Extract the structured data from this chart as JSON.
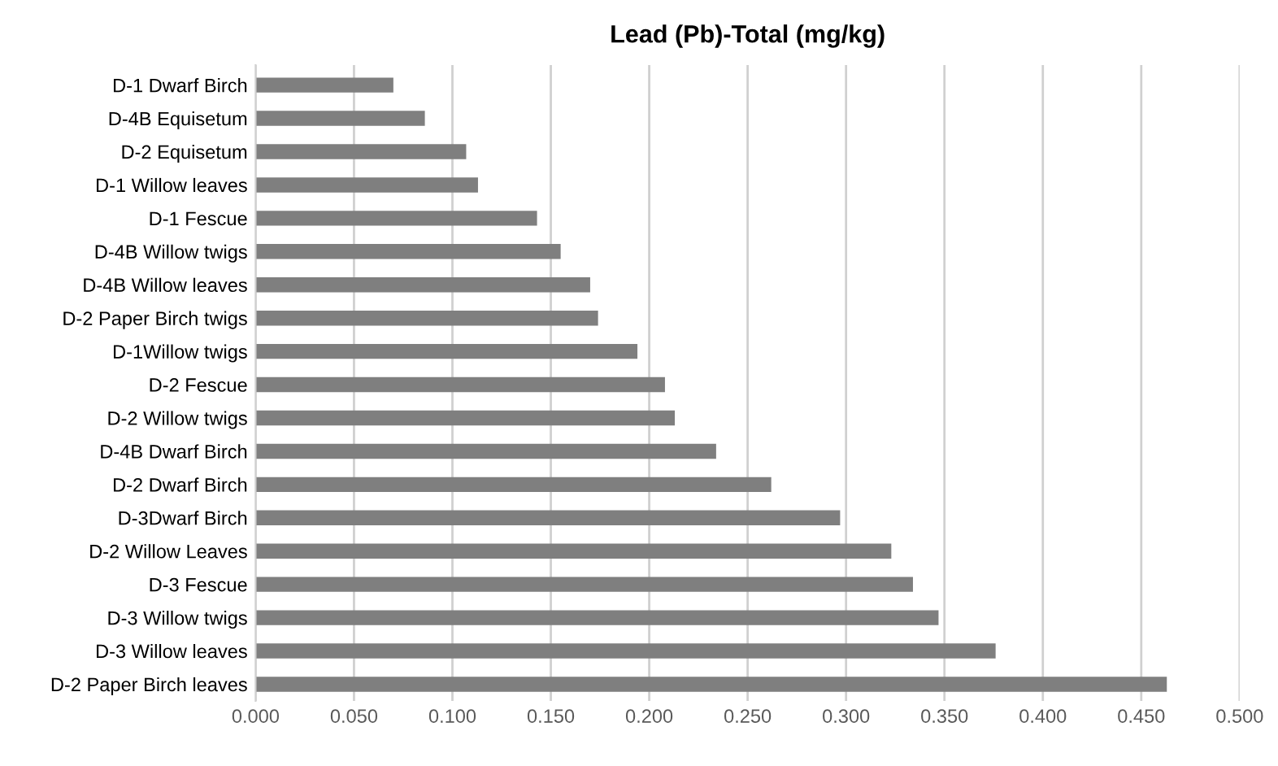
{
  "chart_data": {
    "type": "bar",
    "orientation": "horizontal",
    "title": "Lead (Pb)-Total (mg/kg)",
    "categories": [
      "D-1 Dwarf Birch",
      "D-4B Equisetum",
      "D-2 Equisetum",
      "D-1 Willow leaves",
      "D-1 Fescue",
      "D-4B Willow twigs",
      "D-4B Willow leaves",
      "D-2 Paper Birch twigs",
      "D-1Willow twigs",
      "D-2 Fescue",
      "D-2 Willow twigs",
      "D-4B Dwarf Birch",
      "D-2 Dwarf Birch",
      "D-3Dwarf Birch",
      "D-2 Willow Leaves",
      "D-3 Fescue",
      "D-3 Willow twigs",
      "D-3 Willow leaves",
      "D-2 Paper Birch leaves"
    ],
    "values": [
      0.07,
      0.086,
      0.107,
      0.113,
      0.143,
      0.155,
      0.17,
      0.174,
      0.194,
      0.208,
      0.213,
      0.234,
      0.262,
      0.297,
      0.323,
      0.334,
      0.347,
      0.376,
      0.463
    ],
    "color": "#7f7f7f",
    "xlim": [
      0,
      0.5
    ],
    "xticks": [
      {
        "value": 0,
        "label": "0.000"
      },
      {
        "value": 0.05,
        "label": "0.050"
      },
      {
        "value": 0.1,
        "label": "0.100"
      },
      {
        "value": 0.15,
        "label": "0.150"
      },
      {
        "value": 0.2,
        "label": "0.200"
      },
      {
        "value": 0.25,
        "label": "0.250"
      },
      {
        "value": 0.3,
        "label": "0.300"
      },
      {
        "value": 0.35,
        "label": "0.350"
      },
      {
        "value": 0.4,
        "label": "0.400"
      },
      {
        "value": 0.45,
        "label": "0.450"
      },
      {
        "value": 0.5,
        "label": "0.500"
      }
    ],
    "grid": "x"
  }
}
